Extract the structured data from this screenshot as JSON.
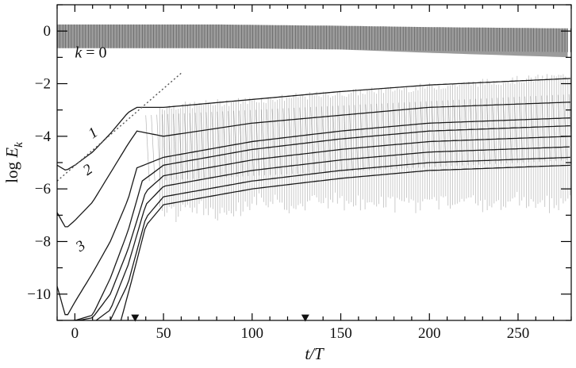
{
  "chart_data": {
    "type": "line",
    "title": "",
    "xlabel": "t/T",
    "ylabel": "log E_k",
    "ylabel_parts": {
      "main": "log ",
      "var": "E",
      "sub": "k"
    },
    "xlim": [
      -10,
      280
    ],
    "ylim": [
      -11,
      1
    ],
    "x_ticks": [
      0,
      50,
      100,
      150,
      200,
      250
    ],
    "x_tick_labels": [
      "0",
      "50",
      "100",
      "150",
      "200",
      "250"
    ],
    "y_ticks": [
      0,
      -2,
      -4,
      -6,
      -8,
      -10
    ],
    "y_tick_labels": [
      "0",
      "−2",
      "−4",
      "−6",
      "−8",
      "−10"
    ],
    "grid": false,
    "annotations": [
      {
        "text": "k = 0",
        "x": 0,
        "y": -1
      },
      {
        "text": "1",
        "x": 10,
        "y": -4.1
      },
      {
        "text": "2",
        "x": 7,
        "y": -5.5
      },
      {
        "text": "3",
        "x": 3,
        "y": -8.4
      }
    ],
    "markers": [
      {
        "shape": "triangle-down",
        "x": 34,
        "y": -10.9
      },
      {
        "shape": "triangle-down",
        "x": 130,
        "y": -10.9
      }
    ],
    "reference_line": {
      "style": "dotted",
      "points": [
        [
          -10,
          -5.7
        ],
        [
          60,
          -1.6
        ]
      ]
    },
    "series": [
      {
        "x": [
          -10,
          0,
          30,
          80,
          150,
          200,
          280
        ],
        "y": [
          -0.2,
          -0.2,
          -0.2,
          -0.2,
          -0.25,
          -0.3,
          -0.35
        ]
      },
      {
        "x": [
          -10,
          -5,
          0,
          10,
          20,
          30,
          35,
          50,
          100,
          150,
          200,
          280
        ],
        "y": [
          -5.1,
          -5.3,
          -5.1,
          -4.6,
          -3.9,
          -3.1,
          -2.9,
          -2.9,
          -2.6,
          -2.3,
          -2.05,
          -1.8
        ]
      },
      {
        "x": [
          -10,
          -5,
          0,
          10,
          20,
          30,
          35,
          50,
          100,
          150,
          200,
          280
        ],
        "y": [
          -6.9,
          -7.5,
          -7.2,
          -6.5,
          -5.4,
          -4.3,
          -3.8,
          -4.0,
          -3.5,
          -3.2,
          -2.9,
          -2.7
        ]
      },
      {
        "x": [
          -10,
          -5,
          0,
          10,
          20,
          30,
          35,
          50,
          100,
          150,
          200,
          280
        ],
        "y": [
          -9.7,
          -10.9,
          -10.3,
          -9.2,
          -8.0,
          -6.4,
          -5.2,
          -4.8,
          -4.2,
          -3.8,
          -3.5,
          -3.3
        ]
      },
      {
        "x": [
          -10,
          0,
          10,
          20,
          30,
          38,
          50,
          100,
          150,
          200,
          280
        ],
        "y": [
          -11,
          -11,
          -10.8,
          -9.4,
          -7.6,
          -5.7,
          -5.1,
          -4.5,
          -4.1,
          -3.8,
          -3.6
        ]
      },
      {
        "x": [
          2,
          10,
          20,
          30,
          40,
          50,
          100,
          150,
          200,
          280
        ],
        "y": [
          -11,
          -10.9,
          -10.0,
          -8.3,
          -6.1,
          -5.5,
          -4.9,
          -4.5,
          -4.2,
          -4.0
        ]
      },
      {
        "x": [
          12,
          20,
          30,
          40,
          50,
          100,
          150,
          200,
          280
        ],
        "y": [
          -11,
          -10.6,
          -8.9,
          -6.6,
          -5.9,
          -5.3,
          -4.9,
          -4.6,
          -4.4
        ]
      },
      {
        "x": [
          20,
          30,
          40,
          50,
          100,
          150,
          200,
          280
        ],
        "y": [
          -11,
          -9.6,
          -7.1,
          -6.3,
          -5.7,
          -5.3,
          -5.0,
          -4.8
        ]
      },
      {
        "x": [
          26,
          32,
          40,
          50,
          100,
          150,
          200,
          280
        ],
        "y": [
          -11,
          -9.5,
          -7.4,
          -6.6,
          -6.0,
          -5.6,
          -5.3,
          -5.1
        ]
      }
    ]
  }
}
